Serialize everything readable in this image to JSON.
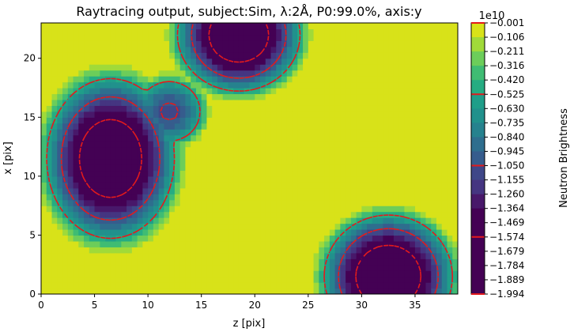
{
  "chart_data": {
    "type": "heatmap",
    "title": "Raytracing output, subject:Sim, λ:2Å, P0:99.0%, axis:y",
    "xlabel": "z [pix]",
    "ylabel": "x [pix]",
    "xlim": [
      0,
      39
    ],
    "ylim": [
      0,
      23
    ],
    "x_ticks": [
      "0",
      "5",
      "10",
      "15",
      "20",
      "25",
      "30",
      "35"
    ],
    "y_ticks": [
      "0",
      "5",
      "10",
      "15",
      "20"
    ],
    "colorbar": {
      "label": "Neutron Brightness",
      "multiplier": "1e10",
      "tick_labels": [
        "-0.001",
        "-0.106",
        "-0.211",
        "-0.316",
        "-0.420",
        "-0.525",
        "-0.630",
        "-0.735",
        "-0.840",
        "-0.945",
        "-1.050",
        "-1.155",
        "-1.260",
        "-1.364",
        "-1.469",
        "-1.574",
        "-1.679",
        "-1.784",
        "-1.889",
        "-1.994"
      ],
      "colors": [
        "#d8e219",
        "#a0da39",
        "#6ccd5a",
        "#3fbc73",
        "#25ac82",
        "#1f9e89",
        "#21918c",
        "#26828e",
        "#2e6e8e",
        "#365c8d",
        "#3f4788",
        "#453581",
        "#48186a",
        "#440154",
        "#440154"
      ],
      "dashed_contour_levels": [
        "-0.525",
        "-1.050",
        "-1.574"
      ]
    },
    "contour_line_color": "#e31a1c",
    "blobs": [
      {
        "center_z": 6.5,
        "center_x": 11.5,
        "rx": 7.5,
        "ry": 8.5,
        "min": -1.95
      },
      {
        "center_z": 18.5,
        "center_x": 22.0,
        "rx": 7.2,
        "ry": 6.0,
        "min": -1.95
      },
      {
        "center_z": 32.5,
        "center_x": 1.5,
        "rx": 7.5,
        "ry": 6.5,
        "min": -1.99
      }
    ],
    "bridges": [
      {
        "z": 12.0,
        "x": 15.5,
        "min": -1.1
      }
    ]
  }
}
